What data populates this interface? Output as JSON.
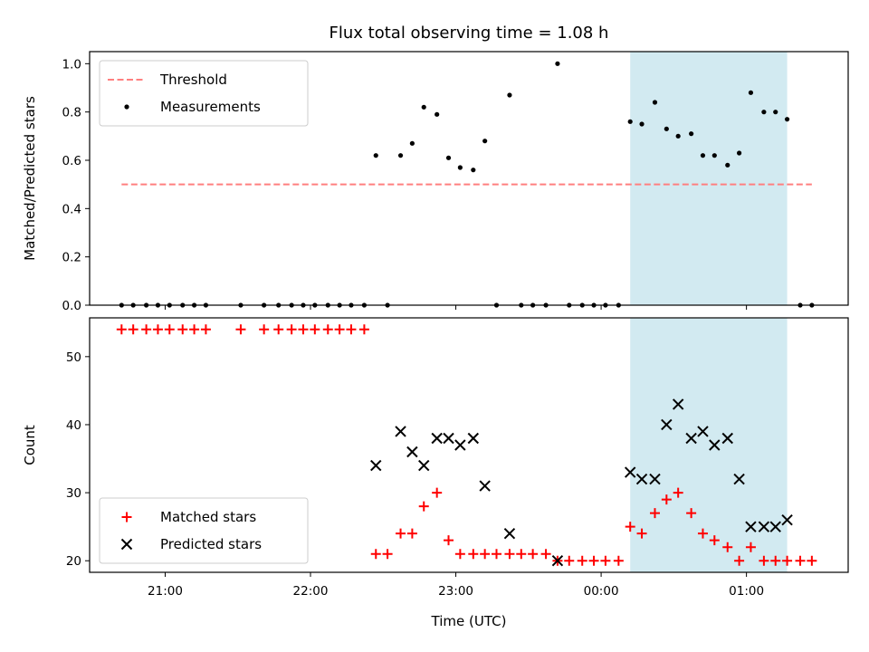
{
  "figure": {
    "title": "Flux total observing time = 1.08 h",
    "xlabel": "Time (UTC)",
    "xticks": [
      {
        "value": 21.0,
        "label": "21:00"
      },
      {
        "value": 22.0,
        "label": "22:00"
      },
      {
        "value": 23.0,
        "label": "23:00"
      },
      {
        "value": 24.0,
        "label": "00:00"
      },
      {
        "value": 25.0,
        "label": "01:00"
      }
    ],
    "xlim": [
      20.48,
      25.7
    ],
    "highlight": {
      "start": 24.2,
      "end": 25.28,
      "color": "#add8e6"
    }
  },
  "chart_data": [
    {
      "type": "scatter",
      "ylabel": "Matched/Predicted stars",
      "ylim": [
        0.0,
        1.05
      ],
      "yticks": [
        0.0,
        0.2,
        0.4,
        0.6,
        0.8,
        1.0
      ],
      "legend_position": "upper-left",
      "threshold": {
        "name": "Threshold",
        "value": 0.5,
        "x_range": [
          20.7,
          25.45
        ],
        "color": "#ff7f7f"
      },
      "series": [
        {
          "name": "Measurements",
          "color": "#000000",
          "points": [
            [
              20.7,
              0
            ],
            [
              20.78,
              0
            ],
            [
              20.87,
              0
            ],
            [
              20.95,
              0
            ],
            [
              21.03,
              0
            ],
            [
              21.12,
              0
            ],
            [
              21.2,
              0
            ],
            [
              21.28,
              0
            ],
            [
              21.52,
              0
            ],
            [
              21.68,
              0
            ],
            [
              21.78,
              0
            ],
            [
              21.87,
              0
            ],
            [
              21.95,
              0
            ],
            [
              22.03,
              0
            ],
            [
              22.12,
              0
            ],
            [
              22.2,
              0
            ],
            [
              22.28,
              0
            ],
            [
              22.37,
              0
            ],
            [
              22.45,
              0.62
            ],
            [
              22.53,
              0
            ],
            [
              22.62,
              0.62
            ],
            [
              22.7,
              0.67
            ],
            [
              22.78,
              0.82
            ],
            [
              22.87,
              0.79
            ],
            [
              22.95,
              0.61
            ],
            [
              23.03,
              0.57
            ],
            [
              23.12,
              0.56
            ],
            [
              23.2,
              0.68
            ],
            [
              23.28,
              0
            ],
            [
              23.37,
              0.87
            ],
            [
              23.45,
              0
            ],
            [
              23.53,
              0
            ],
            [
              23.62,
              0
            ],
            [
              23.7,
              1.0
            ],
            [
              23.78,
              0
            ],
            [
              23.87,
              0
            ],
            [
              23.95,
              0
            ],
            [
              24.03,
              0
            ],
            [
              24.12,
              0
            ],
            [
              24.2,
              0.76
            ],
            [
              24.28,
              0.75
            ],
            [
              24.37,
              0.84
            ],
            [
              24.45,
              0.73
            ],
            [
              24.53,
              0.7
            ],
            [
              24.62,
              0.71
            ],
            [
              24.7,
              0.62
            ],
            [
              24.78,
              0.62
            ],
            [
              24.87,
              0.58
            ],
            [
              24.95,
              0.63
            ],
            [
              25.03,
              0.88
            ],
            [
              25.12,
              0.8
            ],
            [
              25.2,
              0.8
            ],
            [
              25.28,
              0.77
            ],
            [
              25.37,
              0
            ],
            [
              25.45,
              0
            ]
          ]
        }
      ]
    },
    {
      "type": "scatter",
      "ylabel": "Count",
      "ylim": [
        18.3,
        55.7
      ],
      "yticks": [
        20,
        30,
        40,
        50
      ],
      "legend_position": "lower-left",
      "series": [
        {
          "name": "Matched stars",
          "marker": "plus",
          "color": "#ff0000",
          "points": [
            [
              20.7,
              54
            ],
            [
              20.78,
              54
            ],
            [
              20.87,
              54
            ],
            [
              20.95,
              54
            ],
            [
              21.03,
              54
            ],
            [
              21.12,
              54
            ],
            [
              21.2,
              54
            ],
            [
              21.28,
              54
            ],
            [
              21.52,
              54
            ],
            [
              21.68,
              54
            ],
            [
              21.78,
              54
            ],
            [
              21.87,
              54
            ],
            [
              21.95,
              54
            ],
            [
              22.03,
              54
            ],
            [
              22.12,
              54
            ],
            [
              22.2,
              54
            ],
            [
              22.28,
              54
            ],
            [
              22.37,
              54
            ],
            [
              22.45,
              21
            ],
            [
              22.53,
              21
            ],
            [
              22.62,
              24
            ],
            [
              22.7,
              24
            ],
            [
              22.78,
              28
            ],
            [
              22.87,
              30
            ],
            [
              22.95,
              23
            ],
            [
              23.03,
              21
            ],
            [
              23.12,
              21
            ],
            [
              23.2,
              21
            ],
            [
              23.28,
              21
            ],
            [
              23.37,
              21
            ],
            [
              23.45,
              21
            ],
            [
              23.53,
              21
            ],
            [
              23.62,
              21
            ],
            [
              23.7,
              20
            ],
            [
              23.78,
              20
            ],
            [
              23.87,
              20
            ],
            [
              23.95,
              20
            ],
            [
              24.03,
              20
            ],
            [
              24.12,
              20
            ],
            [
              24.2,
              25
            ],
            [
              24.28,
              24
            ],
            [
              24.37,
              27
            ],
            [
              24.45,
              29
            ],
            [
              24.53,
              30
            ],
            [
              24.62,
              27
            ],
            [
              24.7,
              24
            ],
            [
              24.78,
              23
            ],
            [
              24.87,
              22
            ],
            [
              24.95,
              20
            ],
            [
              25.03,
              22
            ],
            [
              25.12,
              20
            ],
            [
              25.2,
              20
            ],
            [
              25.28,
              20
            ],
            [
              25.37,
              20
            ],
            [
              25.45,
              20
            ]
          ]
        },
        {
          "name": "Predicted stars",
          "marker": "x",
          "color": "#000000",
          "points": [
            [
              22.45,
              34
            ],
            [
              22.62,
              39
            ],
            [
              22.7,
              36
            ],
            [
              22.78,
              34
            ],
            [
              22.87,
              38
            ],
            [
              22.95,
              38
            ],
            [
              23.03,
              37
            ],
            [
              23.12,
              38
            ],
            [
              23.2,
              31
            ],
            [
              23.37,
              24
            ],
            [
              23.7,
              20
            ],
            [
              24.2,
              33
            ],
            [
              24.28,
              32
            ],
            [
              24.37,
              32
            ],
            [
              24.45,
              40
            ],
            [
              24.53,
              43
            ],
            [
              24.62,
              38
            ],
            [
              24.7,
              39
            ],
            [
              24.78,
              37
            ],
            [
              24.87,
              38
            ],
            [
              24.95,
              32
            ],
            [
              25.03,
              25
            ],
            [
              25.12,
              25
            ],
            [
              25.2,
              25
            ],
            [
              25.28,
              26
            ]
          ]
        }
      ]
    }
  ]
}
